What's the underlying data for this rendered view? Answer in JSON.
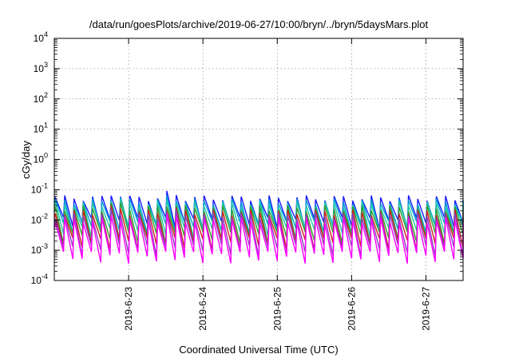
{
  "chart_data": {
    "type": "line",
    "title": "/data/run/goesPlots/archive/2019-06-27/10:00/bryn/../bryn/5daysMars.plot",
    "xlabel": "Coordinated Universal Time (UTC)",
    "ylabel": "cGy/day",
    "yscale": "log",
    "ylim": [
      0.0001,
      10000
    ],
    "xlim": [
      "2019-06-22 00:00",
      "2019-06-27 12:00"
    ],
    "y_ticks": [
      {
        "base": "10",
        "exp": "-4"
      },
      {
        "base": "10",
        "exp": "-3"
      },
      {
        "base": "10",
        "exp": "-2"
      },
      {
        "base": "10",
        "exp": "-1"
      },
      {
        "base": "10",
        "exp": "0"
      },
      {
        "base": "10",
        "exp": "1"
      },
      {
        "base": "10",
        "exp": "2"
      },
      {
        "base": "10",
        "exp": "3"
      },
      {
        "base": "10",
        "exp": "4"
      }
    ],
    "x_ticks": [
      "2019-6-23",
      "2019-6-24",
      "2019-6-25",
      "2019-6-26",
      "2019-6-27"
    ],
    "x_tick_days": [
      1,
      2,
      3,
      4,
      5
    ],
    "grid": true,
    "legend": "none",
    "cycle_hours": 3,
    "series": [
      {
        "color": "#1a1aff",
        "peak": 0.065,
        "trough": 0.012
      },
      {
        "color": "#00a0d0",
        "peak": 0.05,
        "trough": 0.009
      },
      {
        "color": "#20c8a8",
        "peak": 0.04,
        "trough": 0.006
      },
      {
        "color": "#30a030",
        "peak": 0.03,
        "trough": 0.004
      },
      {
        "color": "#d02020",
        "peak": 0.022,
        "trough": 0.0025
      },
      {
        "color": "#9040c0",
        "peak": 0.017,
        "trough": 0.0015
      },
      {
        "color": "#ff00ff",
        "peak": 0.012,
        "trough": 0.0009
      }
    ],
    "peak_events": [
      {
        "day": 0.75,
        "peak": 0.1
      },
      {
        "day": 0.85,
        "peak": 0.1
      },
      {
        "day": 1.5,
        "peak": 0.11
      },
      {
        "day": 1.6,
        "peak": 0.09
      }
    ]
  }
}
